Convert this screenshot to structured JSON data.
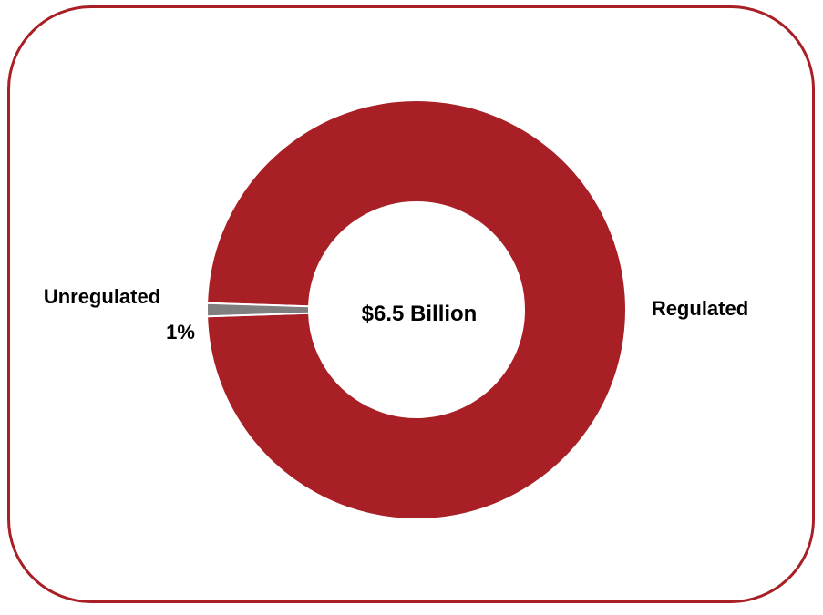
{
  "chart_data": {
    "type": "pie",
    "variant": "donut",
    "center_label": "$6.5 Billion",
    "slices": [
      {
        "label": "Regulated",
        "value": 99,
        "value_label": "",
        "color": "#a81f25"
      },
      {
        "label": "Unregulated",
        "value": 1,
        "value_label": "1%",
        "color": "#7f7f7f"
      }
    ],
    "legend": "none",
    "frame_color": "#a81f25"
  }
}
